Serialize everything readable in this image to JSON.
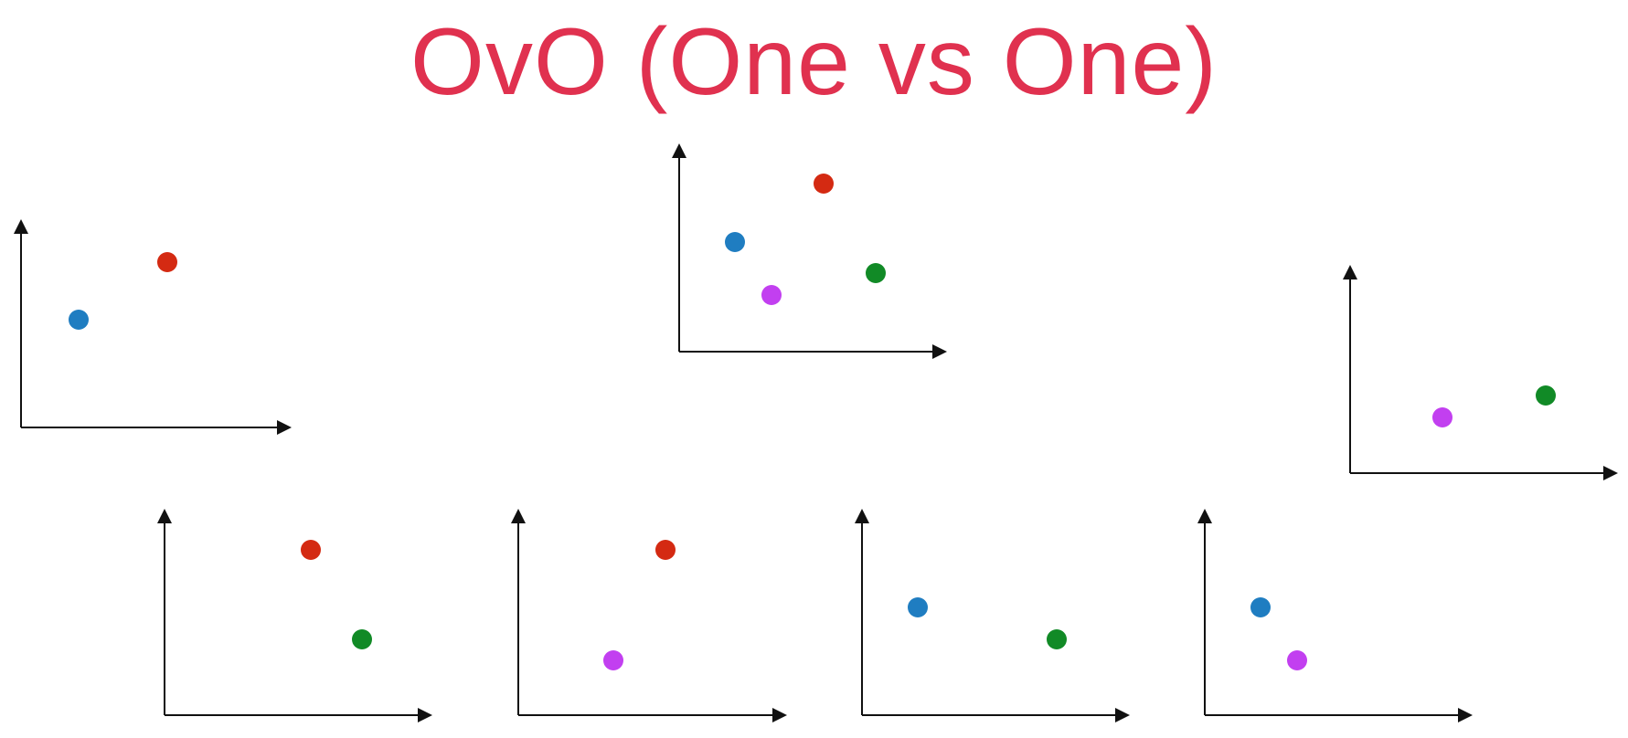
{
  "title": "OvO (One vs One)",
  "colors": {
    "title": "#e0314f",
    "axis": "#111111",
    "blue": "#1f7dc1",
    "red": "#d42a12",
    "green": "#118a26",
    "purple": "#c23ff0"
  },
  "plots": [
    {
      "id": "plot-top-left",
      "name": "plot-all-classes-blue-red",
      "points": [
        {
          "class": "blue"
        },
        {
          "class": "red"
        }
      ]
    },
    {
      "id": "plot-top-center",
      "name": "plot-all-classes",
      "points": [
        {
          "class": "blue"
        },
        {
          "class": "red"
        },
        {
          "class": "purple"
        },
        {
          "class": "green"
        }
      ]
    },
    {
      "id": "plot-top-right",
      "name": "plot-purple-green",
      "points": [
        {
          "class": "purple"
        },
        {
          "class": "green"
        }
      ]
    },
    {
      "id": "plot-bottom-1",
      "name": "plot-red-green",
      "points": [
        {
          "class": "red"
        },
        {
          "class": "green"
        }
      ]
    },
    {
      "id": "plot-bottom-2",
      "name": "plot-red-purple",
      "points": [
        {
          "class": "red"
        },
        {
          "class": "purple"
        }
      ]
    },
    {
      "id": "plot-bottom-3",
      "name": "plot-blue-green",
      "points": [
        {
          "class": "blue"
        },
        {
          "class": "green"
        }
      ]
    },
    {
      "id": "plot-bottom-4",
      "name": "plot-blue-purple",
      "points": [
        {
          "class": "blue"
        },
        {
          "class": "purple"
        }
      ]
    }
  ]
}
